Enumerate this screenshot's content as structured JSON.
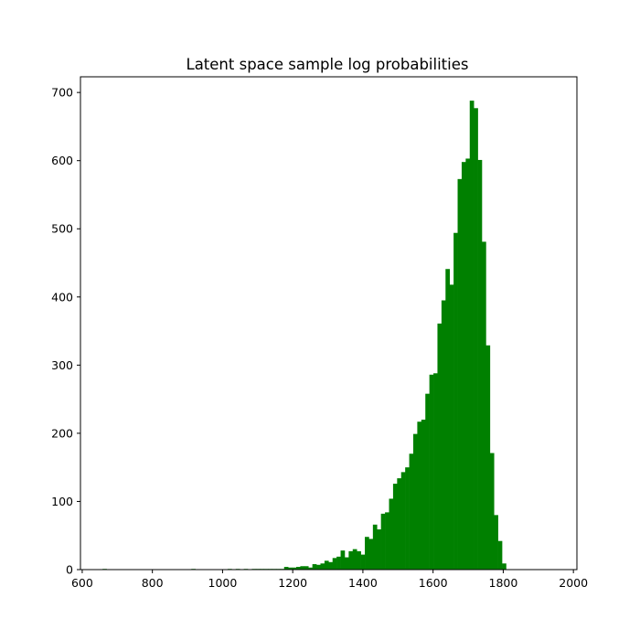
{
  "chart_data": {
    "type": "bar",
    "title": "Latent space sample log probabilities",
    "xlabel": "",
    "ylabel": "",
    "xlim": [
      595,
      2010
    ],
    "ylim": [
      0,
      723
    ],
    "xticks": [
      600,
      800,
      1000,
      1200,
      1400,
      1600,
      1800,
      2000
    ],
    "yticks": [
      0,
      100,
      200,
      300,
      400,
      500,
      600,
      700
    ],
    "bar_color": "#008000",
    "bin_start": 658,
    "bin_width": 11.5,
    "values": [
      1,
      0,
      0,
      0,
      0,
      0,
      0,
      0,
      0,
      0,
      0,
      0,
      0,
      0,
      0,
      0,
      0,
      0,
      0,
      0,
      0,
      0,
      1,
      0,
      0,
      0,
      0,
      0,
      0,
      0,
      0,
      1,
      0,
      1,
      0,
      1,
      0,
      1,
      1,
      1,
      1,
      1,
      1,
      1,
      1,
      4,
      3,
      3,
      4,
      5,
      5,
      3,
      8,
      7,
      9,
      13,
      11,
      17,
      19,
      28,
      18,
      27,
      30,
      27,
      22,
      48,
      45,
      66,
      59,
      82,
      84,
      104,
      126,
      134,
      143,
      150,
      170,
      199,
      217,
      220,
      258,
      286,
      288,
      361,
      395,
      441,
      418,
      494,
      573,
      598,
      603,
      688,
      677,
      601,
      481,
      329,
      171,
      80,
      42,
      9
    ]
  }
}
